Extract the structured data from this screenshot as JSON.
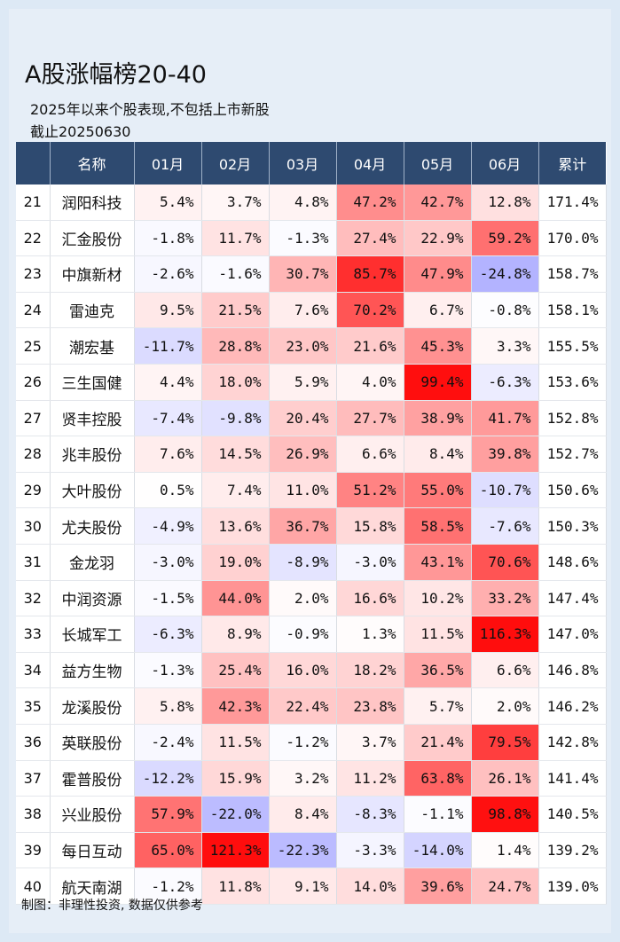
{
  "title": "A股涨幅榜20-40",
  "subtitle": "2025年以来个股表现,不包括上市新股",
  "cutoff": "截止20250630",
  "footer": "制图：非理性投资, 数据仅供参考",
  "colors": {
    "header_bg": "#2e4a70",
    "positive": "#ff0000",
    "negative": "#4040e0",
    "background": "#e6eef7"
  },
  "chart_data": {
    "type": "table",
    "columns": [
      "",
      "名称",
      "01月",
      "02月",
      "03月",
      "04月",
      "05月",
      "06月",
      "累计"
    ],
    "rows": [
      {
        "rank": "21",
        "name": "润阳科技",
        "monthly": [
          5.4,
          3.7,
          4.8,
          47.2,
          42.7,
          12.8
        ],
        "total": 171.4
      },
      {
        "rank": "22",
        "name": "汇金股份",
        "monthly": [
          -1.8,
          11.7,
          -1.3,
          27.4,
          22.9,
          59.2
        ],
        "total": 170.0
      },
      {
        "rank": "23",
        "name": "中旗新材",
        "monthly": [
          -2.6,
          -1.6,
          30.7,
          85.7,
          47.9,
          -24.8
        ],
        "total": 158.7
      },
      {
        "rank": "24",
        "name": "雷迪克",
        "monthly": [
          9.5,
          21.5,
          7.6,
          70.2,
          6.7,
          -0.8
        ],
        "total": 158.1
      },
      {
        "rank": "25",
        "name": "潮宏基",
        "monthly": [
          -11.7,
          28.8,
          23.0,
          21.6,
          45.3,
          3.3
        ],
        "total": 155.5
      },
      {
        "rank": "26",
        "name": "三生国健",
        "monthly": [
          4.4,
          18.0,
          5.9,
          4.0,
          99.4,
          -6.3
        ],
        "total": 153.6
      },
      {
        "rank": "27",
        "name": "贤丰控股",
        "monthly": [
          -7.4,
          -9.8,
          20.4,
          27.7,
          38.9,
          41.7
        ],
        "total": 152.8
      },
      {
        "rank": "28",
        "name": "兆丰股份",
        "monthly": [
          7.6,
          14.5,
          26.9,
          6.6,
          8.4,
          39.8
        ],
        "total": 152.7
      },
      {
        "rank": "29",
        "name": "大叶股份",
        "monthly": [
          0.5,
          7.4,
          11.0,
          51.2,
          55.0,
          -10.7
        ],
        "total": 150.6
      },
      {
        "rank": "30",
        "name": "尤夫股份",
        "monthly": [
          -4.9,
          13.6,
          36.7,
          15.8,
          58.5,
          -7.6
        ],
        "total": 150.3
      },
      {
        "rank": "31",
        "name": "金龙羽",
        "monthly": [
          -3.0,
          19.0,
          -8.9,
          -3.0,
          43.1,
          70.6
        ],
        "total": 148.6
      },
      {
        "rank": "32",
        "name": "中润资源",
        "monthly": [
          -1.5,
          44.0,
          2.0,
          16.6,
          10.2,
          33.2
        ],
        "total": 147.4
      },
      {
        "rank": "33",
        "name": "长城军工",
        "monthly": [
          -6.3,
          8.9,
          -0.9,
          1.3,
          11.5,
          116.3
        ],
        "total": 147.0
      },
      {
        "rank": "34",
        "name": "益方生物",
        "monthly": [
          -1.3,
          25.4,
          16.0,
          18.2,
          36.5,
          6.6
        ],
        "total": 146.8
      },
      {
        "rank": "35",
        "name": "龙溪股份",
        "monthly": [
          5.8,
          42.3,
          22.4,
          23.8,
          5.7,
          2.0
        ],
        "total": 146.2
      },
      {
        "rank": "36",
        "name": "英联股份",
        "monthly": [
          -2.4,
          11.5,
          -1.2,
          3.7,
          21.4,
          79.5
        ],
        "total": 142.8
      },
      {
        "rank": "37",
        "name": "霍普股份",
        "monthly": [
          -12.2,
          15.9,
          3.2,
          11.2,
          63.8,
          26.1
        ],
        "total": 141.4
      },
      {
        "rank": "38",
        "name": "兴业股份",
        "monthly": [
          57.9,
          -22.0,
          8.4,
          -8.3,
          -1.1,
          98.8
        ],
        "total": 140.5
      },
      {
        "rank": "39",
        "name": "每日互动",
        "monthly": [
          65.0,
          121.3,
          -22.3,
          -3.3,
          -14.0,
          1.4
        ],
        "total": 139.2
      },
      {
        "rank": "40",
        "name": "航天南湖",
        "monthly": [
          -1.2,
          11.8,
          9.1,
          14.0,
          39.6,
          24.7
        ],
        "total": 139.0
      }
    ]
  }
}
